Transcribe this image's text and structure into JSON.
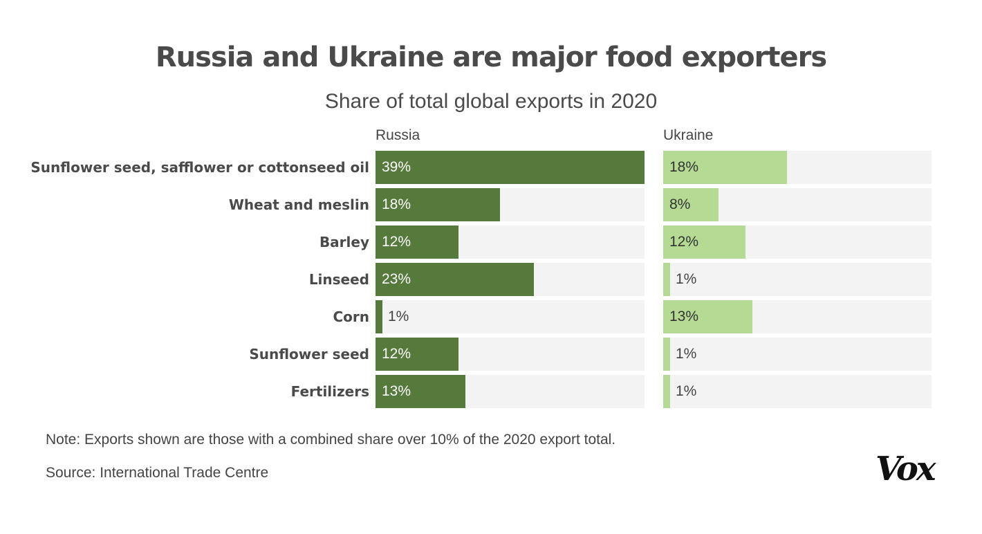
{
  "chart_data": {
    "type": "bar",
    "title": "Russia and Ukraine are major food exporters",
    "subtitle": "Share of total global exports in 2020",
    "categories": [
      "Sunflower seed, safflower or cottonseed oil",
      "Wheat and meslin",
      "Barley",
      "Linseed",
      "Corn",
      "Sunflower seed",
      "Fertilizers"
    ],
    "series": [
      {
        "name": "Russia",
        "values": [
          39,
          18,
          12,
          23,
          1,
          12,
          13
        ],
        "color": "#567a3c"
      },
      {
        "name": "Ukraine",
        "values": [
          18,
          8,
          12,
          1,
          13,
          1,
          1
        ],
        "color": "#b5da93"
      }
    ],
    "value_suffix": "%",
    "xlim": [
      0,
      39
    ],
    "track_color": "#f3f3f3",
    "orientation": "horizontal",
    "grid": false
  },
  "note": "Note: Exports shown are those with a combined share over 10% of the 2020 export total.",
  "source": "Source: International Trade Centre",
  "logo": "Vox"
}
